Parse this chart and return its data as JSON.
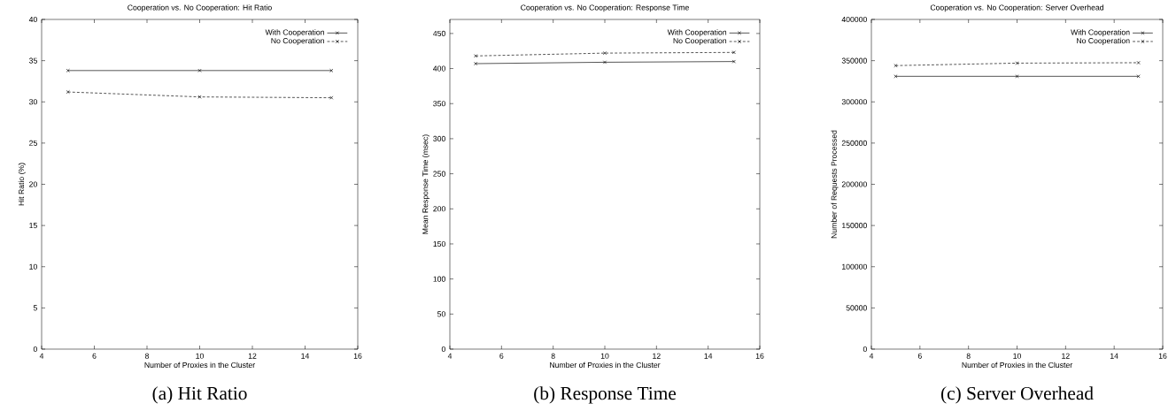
{
  "chart_data": [
    {
      "type": "line",
      "title": "Cooperation vs. No Cooperation: Hit Ratio",
      "xlabel": "Number of Proxies in the Cluster",
      "ylabel": "Hit Ratio (%)",
      "x": [
        5,
        10,
        15
      ],
      "series": [
        {
          "name": "With Cooperation",
          "color": "#000000",
          "values": [
            33.8,
            33.8,
            33.8
          ],
          "line_style": "solid",
          "marker": "cross"
        },
        {
          "name": "No Cooperation",
          "color": "#000000",
          "values": [
            31.2,
            30.6,
            30.5
          ],
          "line_style": "dashed",
          "marker": "cross"
        }
      ],
      "xlim": [
        4,
        16
      ],
      "xticks": [
        4,
        6,
        8,
        10,
        12,
        14,
        16
      ],
      "ylim": [
        0,
        40
      ],
      "yticks": [
        0,
        5,
        10,
        15,
        20,
        25,
        30,
        35,
        40
      ],
      "legend": "top right",
      "grid": false,
      "annotations": [
        "(a) Hit Ratio"
      ]
    },
    {
      "type": "line",
      "title": "Cooperation vs. No Cooperation: Response Time",
      "xlabel": "Number of Proxies in the Cluster",
      "ylabel": "Mean Response Time (msec)",
      "x": [
        5,
        10,
        15
      ],
      "series": [
        {
          "name": "With Cooperation",
          "color": "#000000",
          "values": [
            407,
            409,
            410
          ],
          "line_style": "solid",
          "marker": "cross"
        },
        {
          "name": "No Cooperation",
          "color": "#000000",
          "values": [
            418,
            422,
            423
          ],
          "line_style": "dashed",
          "marker": "cross"
        }
      ],
      "xlim": [
        4,
        16
      ],
      "xticks": [
        4,
        6,
        8,
        10,
        12,
        14,
        16
      ],
      "ylim": [
        0,
        470
      ],
      "yticks": [
        0,
        50,
        100,
        150,
        200,
        250,
        300,
        350,
        400,
        450
      ],
      "legend": "top right",
      "grid": false,
      "annotations": [
        "(b) Response Time"
      ]
    },
    {
      "type": "line",
      "title": "Cooperation vs. No Cooperation: Server Overhead",
      "xlabel": "Number of Proxies in the Cluster",
      "ylabel": "Number of Requests Processed",
      "x": [
        5,
        10,
        15
      ],
      "series": [
        {
          "name": "With Cooperation",
          "color": "#000000",
          "values": [
            331000,
            331000,
            331000
          ],
          "line_style": "solid",
          "marker": "cross"
        },
        {
          "name": "No Cooperation",
          "color": "#000000",
          "values": [
            344000,
            347000,
            347500
          ],
          "line_style": "dashed",
          "marker": "cross"
        }
      ],
      "xlim": [
        4,
        16
      ],
      "xticks": [
        4,
        6,
        8,
        10,
        12,
        14,
        16
      ],
      "ylim": [
        0,
        400000
      ],
      "yticks": [
        0,
        50000,
        100000,
        150000,
        200000,
        250000,
        300000,
        350000,
        400000
      ],
      "legend": "top right",
      "grid": false,
      "annotations": [
        "(c) Server Overhead"
      ]
    }
  ]
}
